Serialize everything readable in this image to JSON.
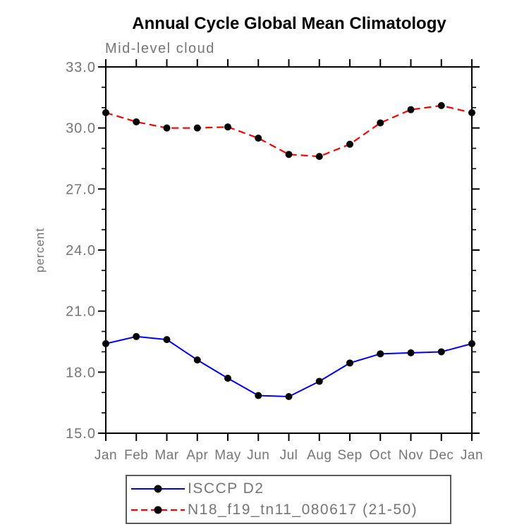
{
  "title": "Annual Cycle Global Mean Climatology",
  "chart_data": {
    "type": "line",
    "title": "Annual Cycle Global Mean Climatology",
    "subtitle": "Mid-level cloud",
    "ylabel": "percent",
    "xlabel": "",
    "categories": [
      "Jan",
      "Feb",
      "Mar",
      "Apr",
      "May",
      "Jun",
      "Jul",
      "Aug",
      "Sep",
      "Oct",
      "Nov",
      "Dec",
      "Jan"
    ],
    "series": [
      {
        "name": "ISCCP D2",
        "color": "#0000ff",
        "line_style": "solid",
        "marker": "filled-black-circle",
        "values": [
          19.4,
          19.75,
          19.6,
          18.6,
          17.7,
          16.85,
          16.8,
          17.55,
          18.45,
          18.9,
          18.95,
          19.0,
          19.4
        ]
      },
      {
        "name": "N18_f19_tn11_080617 (21-50)",
        "color": "#ff0000",
        "line_style": "dashed",
        "marker": "filled-black-circle",
        "values": [
          30.75,
          30.3,
          30.0,
          30.0,
          30.05,
          29.5,
          28.7,
          28.6,
          29.2,
          30.25,
          30.9,
          31.1,
          30.75
        ]
      }
    ],
    "ylim": [
      15.0,
      33.0
    ],
    "y_major_ticks": [
      15,
      18,
      21,
      24,
      27,
      30,
      33
    ],
    "y_tick_labels": [
      "15.0",
      "18.0",
      "21.0",
      "24.0",
      "27.0",
      "30.0",
      "33.0"
    ],
    "y_minor_step": 1.0,
    "grid": false,
    "tick_direction": "outward",
    "legend_position": "bottom"
  },
  "colors": {
    "axis": "#000000",
    "tick_text": "#767676",
    "title_text": "#000000",
    "marker": "#000000",
    "legend_border": "#5a5a5a"
  }
}
